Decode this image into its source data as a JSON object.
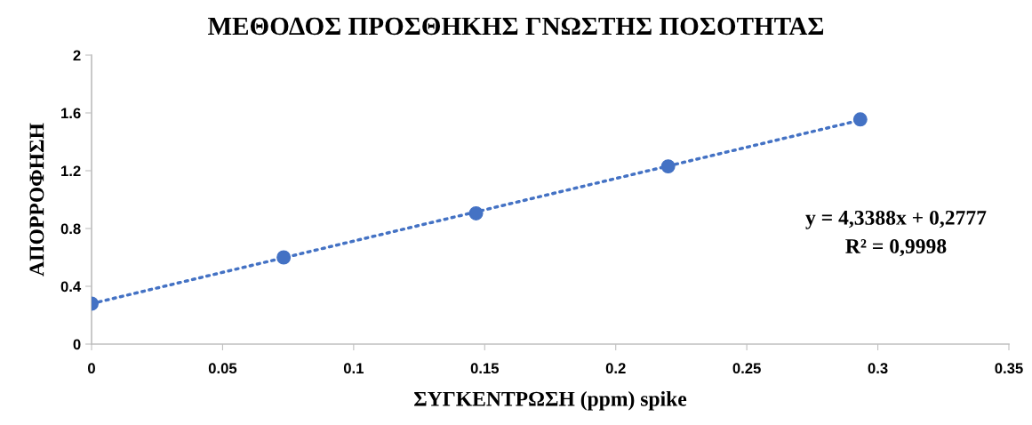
{
  "chart_data": {
    "type": "scatter",
    "title": "ΜΕΘΟΔΟΣ ΠΡΟΣΘΗΚΗΣ ΓΝΩΣΤΗΣ ΠΟΣΟΤΗΤΑΣ",
    "xlabel": "ΣΥΓΚΕΝΤΡΩΣΗ (ppm) spike",
    "ylabel": "ΑΠΟΡΡΟΦΗΣΗ",
    "xlim": [
      0,
      0.35
    ],
    "xticks": [
      0,
      0.05,
      0.1,
      0.15,
      0.2,
      0.25,
      0.3,
      0.35
    ],
    "ylim": [
      0,
      2
    ],
    "yticks": [
      0,
      0.4,
      0.8,
      1.2,
      1.6,
      2
    ],
    "series": [
      {
        "color": "#4472c4",
        "marker": "circle",
        "x": [
          0,
          0.0733,
          0.1467,
          0.22,
          0.2933
        ],
        "values": [
          0.28,
          0.6,
          0.905,
          1.23,
          1.555
        ]
      },
      {
        "type": "line",
        "color": "#4472c4",
        "line_style": "dotted",
        "x": [
          0,
          0.2933
        ],
        "values": [
          0.28,
          1.55
        ]
      }
    ],
    "annotations": [
      "y = 4,3388x + 0,2777",
      "R² = 0,9998"
    ]
  }
}
